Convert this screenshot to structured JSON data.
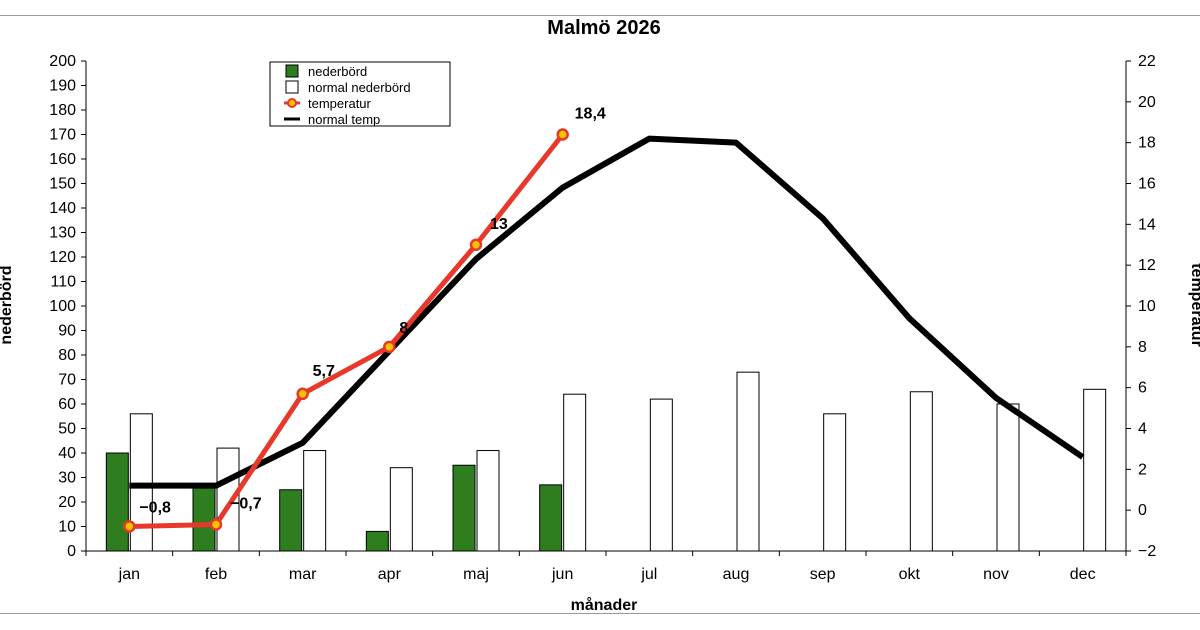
{
  "chart_data": {
    "type": "bar",
    "title": "Malmö 2026",
    "xlabel": "månader",
    "ylabel_left": "nederbörd",
    "ylabel_right": "temperatur",
    "categories": [
      "jan",
      "feb",
      "mar",
      "apr",
      "maj",
      "jun",
      "jul",
      "aug",
      "sep",
      "okt",
      "nov",
      "dec"
    ],
    "ylim_left": [
      0,
      200
    ],
    "yticks_left": [
      0,
      10,
      20,
      30,
      40,
      50,
      60,
      70,
      80,
      90,
      100,
      110,
      120,
      130,
      140,
      150,
      160,
      170,
      180,
      190,
      200
    ],
    "ylim_right": [
      -2,
      22
    ],
    "yticks_right": [
      -2,
      0,
      2,
      4,
      6,
      8,
      10,
      12,
      14,
      16,
      18,
      20,
      22
    ],
    "grid": false,
    "legend_position": "top-left",
    "series": [
      {
        "name": "nederbörd",
        "type": "bar",
        "axis": "left",
        "color": "#2e7d1f",
        "values": [
          40,
          26,
          25,
          8,
          35,
          27,
          null,
          null,
          null,
          null,
          null,
          null
        ]
      },
      {
        "name": "normal nederbörd",
        "type": "bar",
        "axis": "left",
        "color": "#ffffff",
        "values": [
          56,
          42,
          41,
          34,
          41,
          64,
          62,
          73,
          56,
          65,
          60,
          66
        ]
      },
      {
        "name": "temperatur",
        "type": "line",
        "axis": "right",
        "color": "#e8382a",
        "marker_color": "#f5c400",
        "values": [
          -0.8,
          -0.7,
          5.7,
          8,
          13,
          18.4,
          null,
          null,
          null,
          null,
          null,
          null
        ],
        "labels": [
          "−0,8",
          "−0,7",
          "5,7",
          "8",
          "13",
          "18,4"
        ]
      },
      {
        "name": "normal temp",
        "type": "line",
        "axis": "right",
        "color": "#000000",
        "values": [
          1.2,
          1.2,
          3.3,
          7.8,
          12.3,
          15.8,
          18.2,
          18,
          14.3,
          9.4,
          5.5,
          2.6
        ]
      }
    ]
  }
}
